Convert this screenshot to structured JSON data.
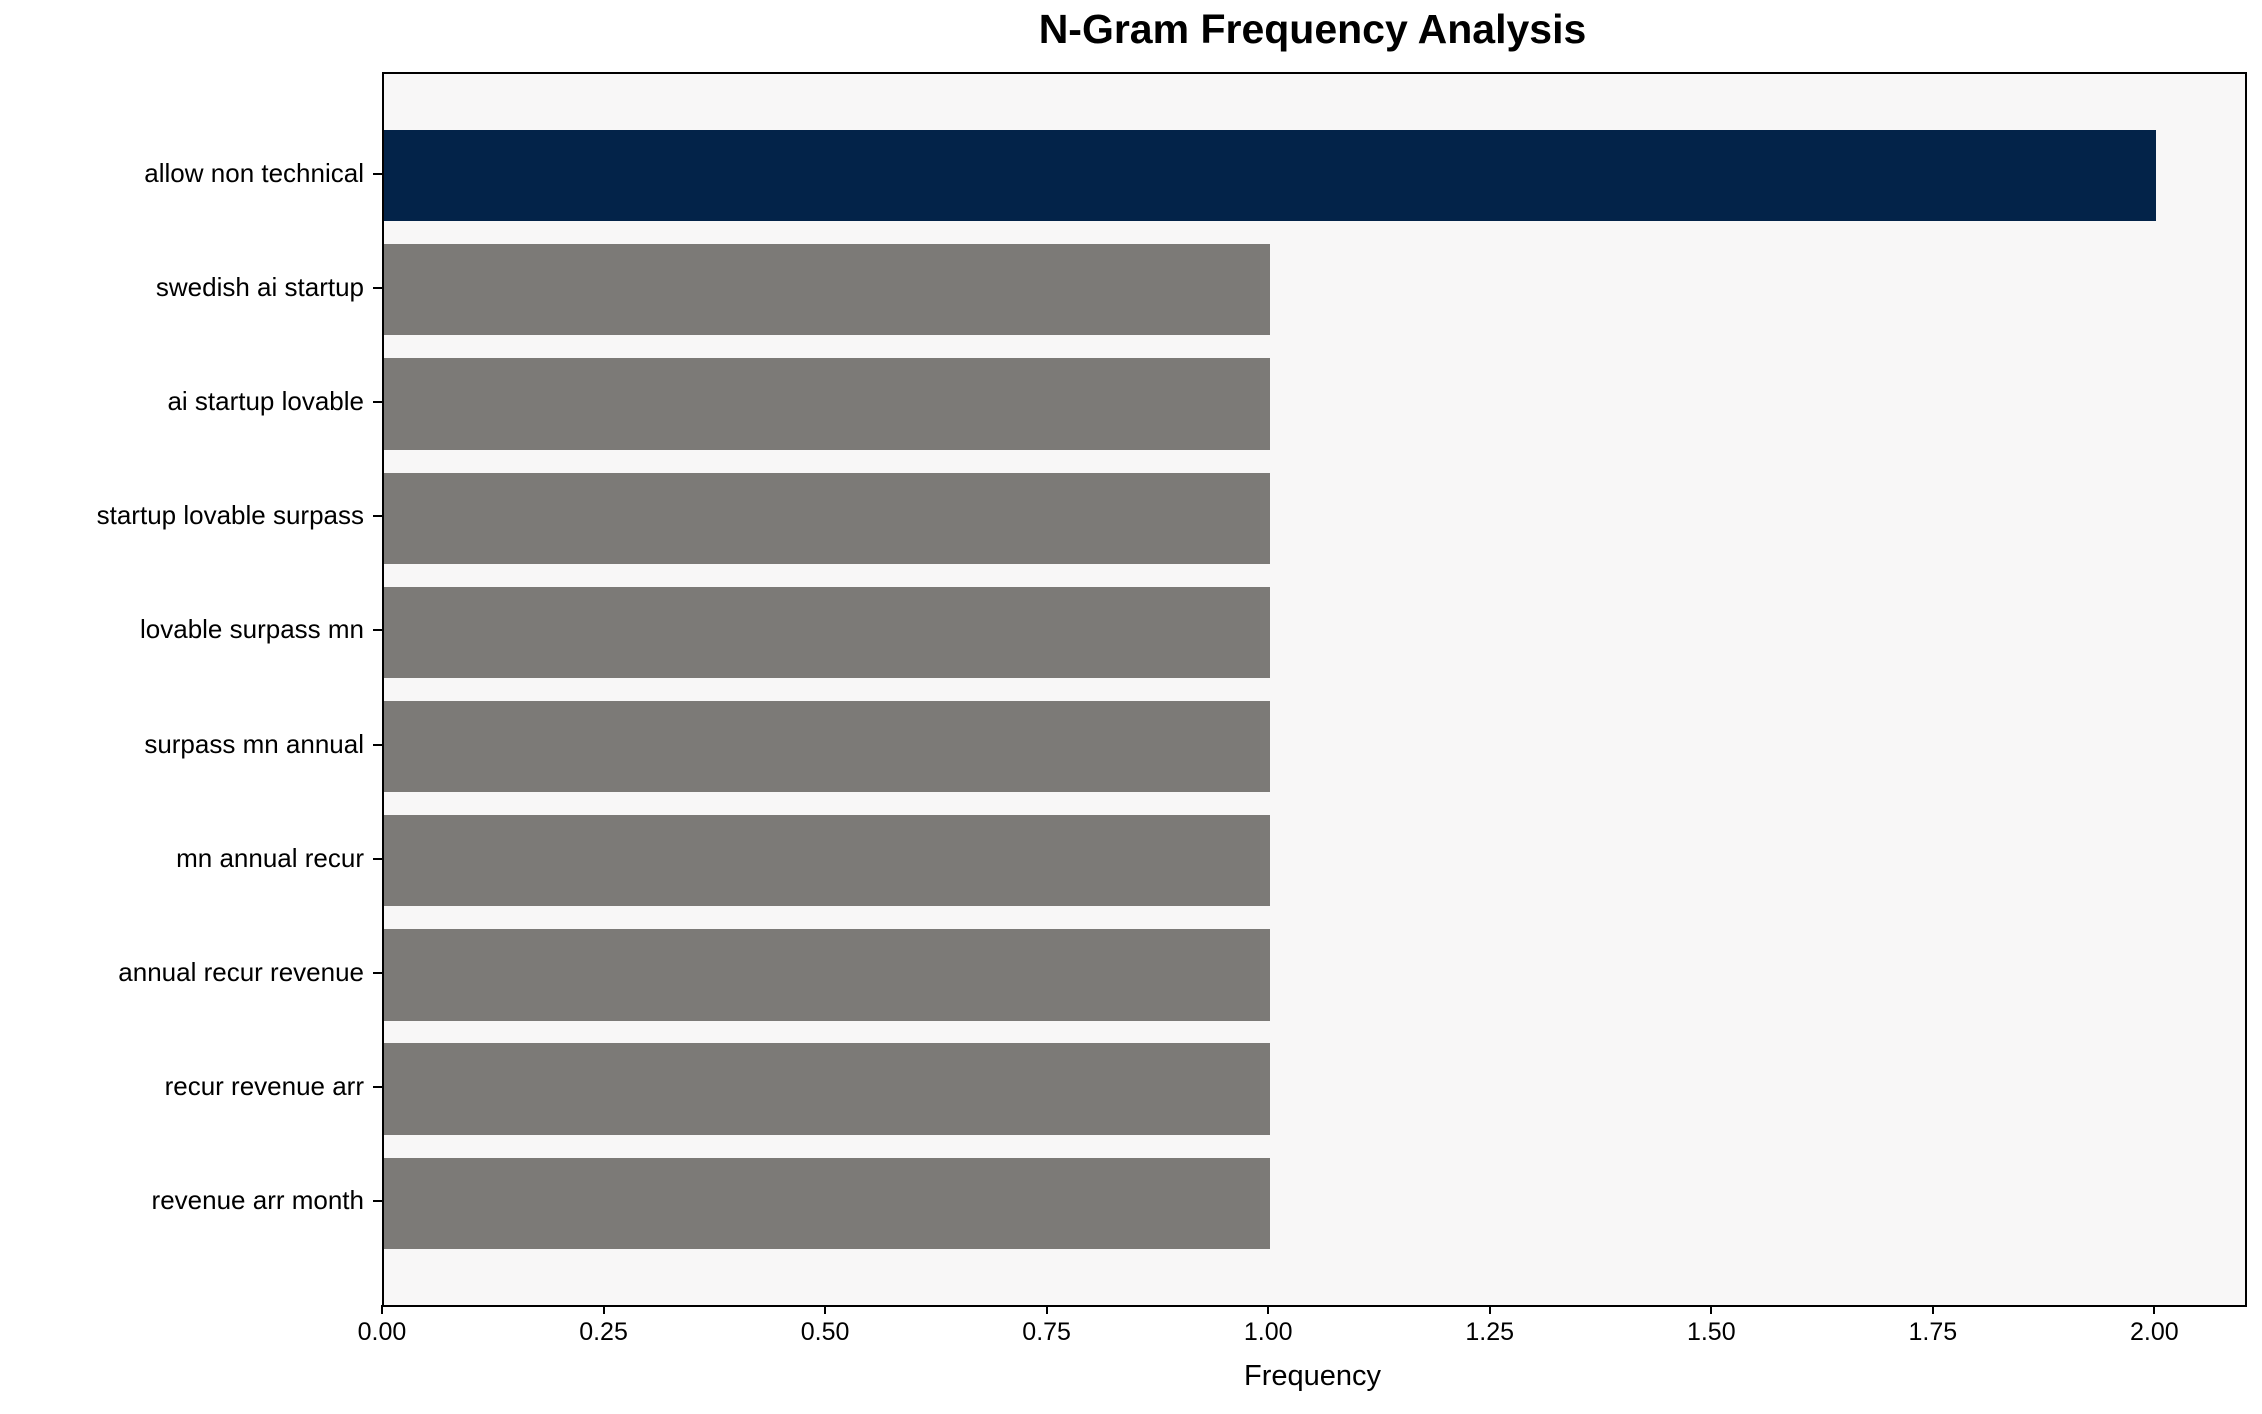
{
  "chart_data": {
    "type": "bar",
    "orientation": "horizontal",
    "title": "N-Gram Frequency Analysis",
    "xlabel": "Frequency",
    "ylabel": "",
    "categories": [
      "allow non technical",
      "swedish ai startup",
      "ai startup lovable",
      "startup lovable surpass",
      "lovable surpass mn",
      "surpass mn annual",
      "mn annual recur",
      "annual recur revenue",
      "recur revenue arr",
      "revenue arr month"
    ],
    "values": [
      2,
      1,
      1,
      1,
      1,
      1,
      1,
      1,
      1,
      1
    ],
    "xlim": [
      0,
      2.1
    ],
    "xtick_values": [
      0,
      0.25,
      0.5,
      0.75,
      1.0,
      1.25,
      1.5,
      1.75,
      2.0
    ],
    "xtick_labels": [
      "0.00",
      "0.25",
      "0.50",
      "0.75",
      "1.00",
      "1.25",
      "1.50",
      "1.75",
      "2.00"
    ],
    "grid": false,
    "legend": null,
    "colors": {
      "highlight_bar": "#032349",
      "default_bar": "#7c7a77",
      "plot_background": "#f8f7f7",
      "figure_background": "#ffffff",
      "spine": "#000000",
      "text": "#000000"
    }
  }
}
